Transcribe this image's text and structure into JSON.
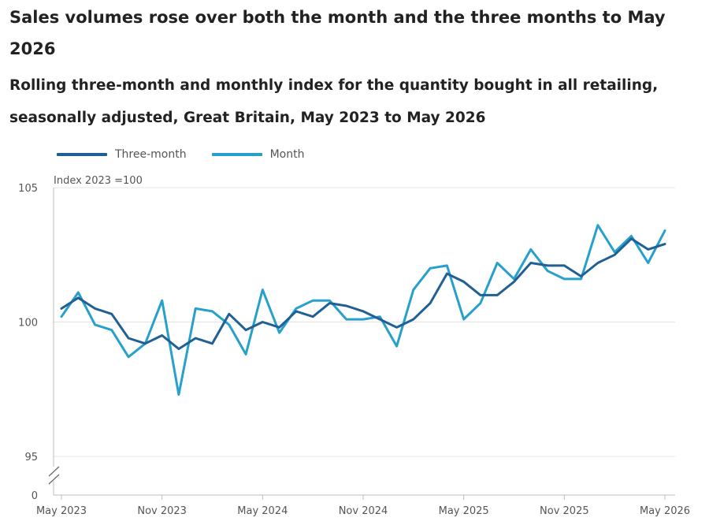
{
  "title": "Sales volumes rose over both the month and the three months to May 2026",
  "subtitle": "Rolling three-month and monthly index for the quantity bought in all retailing, seasonally adjusted, Great Britain, May 2023 to May 2026",
  "colors": {
    "three_month": "#206095",
    "month": "#27a0cc",
    "grid": "#e4e4e4",
    "axis": "#bcbcbc"
  },
  "chart_data": {
    "type": "line",
    "ylabel": "Index 2023 =100",
    "y_ticks": [
      0,
      95,
      100,
      105
    ],
    "y_axis_break": [
      0,
      95
    ],
    "ylim": [
      95,
      105
    ],
    "x_ticks": [
      "May 2023",
      "Nov 2023",
      "May 2024",
      "Nov 2024",
      "May 2025",
      "Nov 2025",
      "May 2026"
    ],
    "x": [
      "May 2023",
      "Jun 2023",
      "Jul 2023",
      "Aug 2023",
      "Sep 2023",
      "Oct 2023",
      "Nov 2023",
      "Dec 2023",
      "Jan 2024",
      "Feb 2024",
      "Mar 2024",
      "Apr 2024",
      "May 2024",
      "Jun 2024",
      "Jul 2024",
      "Aug 2024",
      "Sep 2024",
      "Oct 2024",
      "Nov 2024",
      "Dec 2024",
      "Jan 2025",
      "Feb 2025",
      "Mar 2025",
      "Apr 2025",
      "May 2025",
      "Jun 2025",
      "Jul 2025",
      "Aug 2025",
      "Sep 2025",
      "Oct 2025",
      "Nov 2025",
      "Dec 2025",
      "Jan 2026",
      "Feb 2026",
      "Mar 2026",
      "Apr 2026",
      "May 2026"
    ],
    "series": [
      {
        "name": "Three-month",
        "key": "three_month",
        "values": [
          100.5,
          100.9,
          100.5,
          100.3,
          99.4,
          99.2,
          99.5,
          99.0,
          99.4,
          99.2,
          100.3,
          99.7,
          100.0,
          99.8,
          100.4,
          100.2,
          100.7,
          100.6,
          100.4,
          100.1,
          99.8,
          100.1,
          100.7,
          101.8,
          101.5,
          101.0,
          101.0,
          101.5,
          102.2,
          102.1,
          102.1,
          101.7,
          102.2,
          102.5,
          103.1,
          102.7,
          102.9
        ]
      },
      {
        "name": "Month",
        "key": "month",
        "values": [
          100.2,
          101.1,
          99.9,
          99.7,
          98.7,
          99.2,
          100.8,
          97.3,
          100.5,
          100.4,
          99.9,
          98.8,
          101.2,
          99.6,
          100.5,
          100.8,
          100.8,
          100.1,
          100.1,
          100.2,
          99.1,
          101.2,
          102.0,
          102.1,
          100.1,
          100.7,
          102.2,
          101.6,
          102.7,
          101.9,
          101.6,
          101.6,
          103.6,
          102.6,
          103.2,
          102.2,
          103.4
        ]
      }
    ],
    "legend": "top-left",
    "grid": true
  }
}
